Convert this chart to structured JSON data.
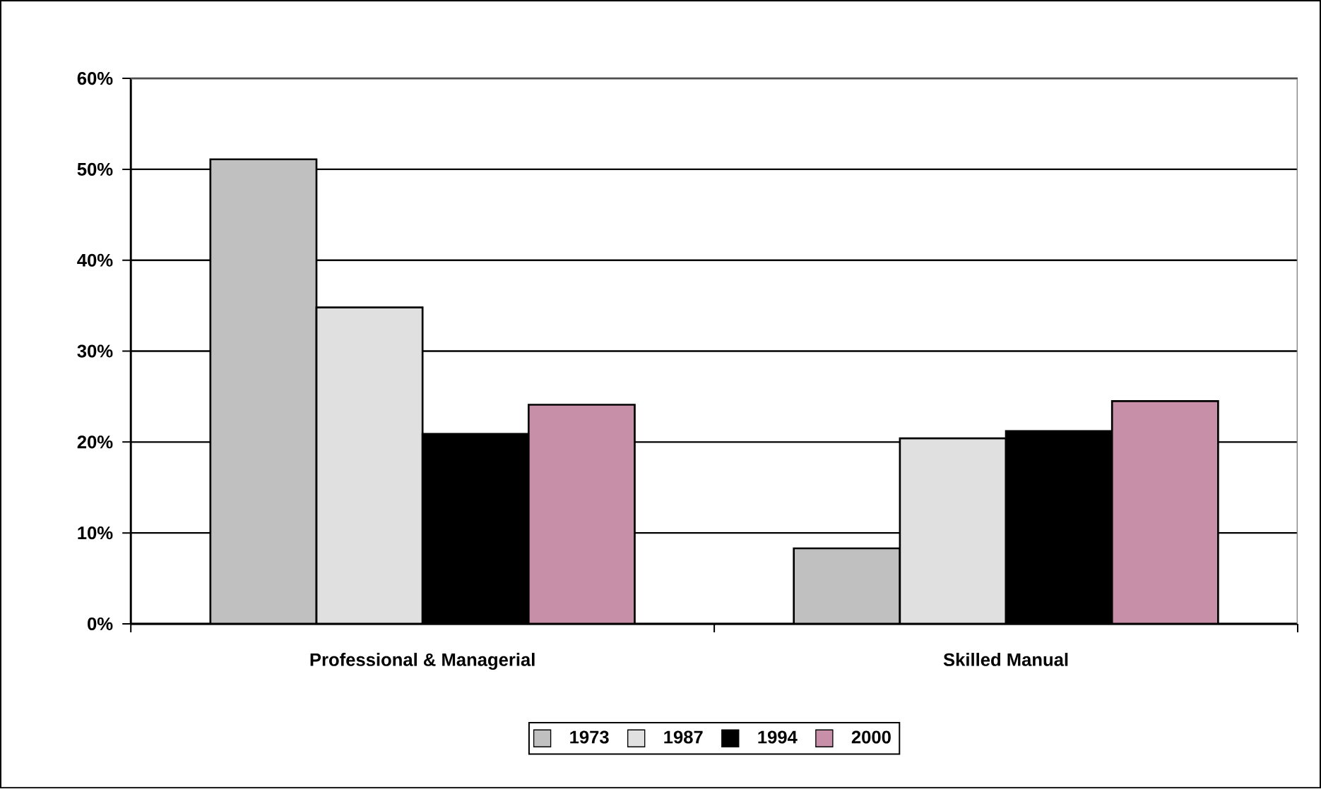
{
  "chart_data": {
    "type": "bar",
    "categories": [
      "Professional & Managerial",
      "Skilled Manual"
    ],
    "series": [
      {
        "name": "1973",
        "color": "#c0c0c0",
        "values": [
          51.1,
          8.3
        ]
      },
      {
        "name": "1987",
        "color": "#e0e0e0",
        "values": [
          34.8,
          20.4
        ]
      },
      {
        "name": "1994",
        "color": "#000000",
        "values": [
          20.9,
          21.2
        ]
      },
      {
        "name": "2000",
        "color": "#c890a8",
        "values": [
          24.1,
          24.5
        ]
      }
    ],
    "ylim": [
      0,
      60
    ],
    "yticks": [
      {
        "value": 0,
        "label": "0%"
      },
      {
        "value": 10,
        "label": "10%"
      },
      {
        "value": 20,
        "label": "20%"
      },
      {
        "value": 30,
        "label": "30%"
      },
      {
        "value": 40,
        "label": "40%"
      },
      {
        "value": 50,
        "label": "50%"
      },
      {
        "value": 60,
        "label": "60%"
      }
    ],
    "grid": "y",
    "legend": "bottom"
  }
}
